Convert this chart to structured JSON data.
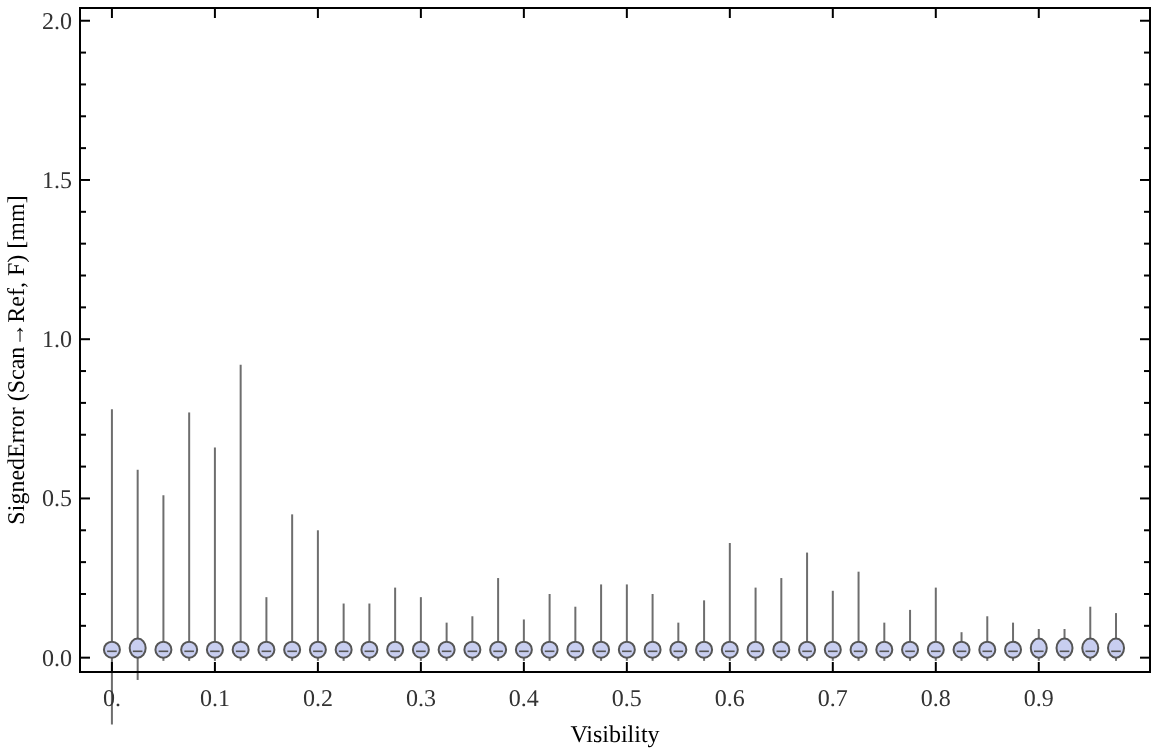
{
  "chart_data": {
    "type": "box",
    "xlabel": "Visibility",
    "ylabel": "SignedError (Scan→Ref, F) [mm]",
    "color": "#c8cef0",
    "x": [
      0,
      0.025,
      0.05,
      0.075,
      0.1,
      0.125,
      0.15,
      0.175,
      0.2,
      0.225,
      0.25,
      0.275,
      0.3,
      0.325,
      0.35,
      0.375,
      0.4,
      0.425,
      0.45,
      0.475,
      0.5,
      0.525,
      0.55,
      0.575,
      0.6,
      0.625,
      0.65,
      0.675,
      0.7,
      0.725,
      0.75,
      0.775,
      0.8,
      0.825,
      0.85,
      0.875,
      0.9,
      0.925,
      0.95,
      0.975
    ],
    "boxes": [
      {
        "low": -0.21,
        "q1": 0,
        "median": 0.02,
        "q3": 0.05,
        "high": 0.78
      },
      {
        "low": -0.07,
        "q1": 0,
        "median": 0.02,
        "q3": 0.06,
        "high": 0.59
      },
      {
        "low": -0.01,
        "q1": 0,
        "median": 0.02,
        "q3": 0.05,
        "high": 0.51
      },
      {
        "low": -0.01,
        "q1": 0,
        "median": 0.02,
        "q3": 0.05,
        "high": 0.77
      },
      {
        "low": -0.01,
        "q1": 0,
        "median": 0.02,
        "q3": 0.05,
        "high": 0.66
      },
      {
        "low": -0.01,
        "q1": 0,
        "median": 0.02,
        "q3": 0.05,
        "high": 0.92
      },
      {
        "low": -0.01,
        "q1": 0,
        "median": 0.02,
        "q3": 0.05,
        "high": 0.19
      },
      {
        "low": -0.01,
        "q1": 0,
        "median": 0.02,
        "q3": 0.05,
        "high": 0.45
      },
      {
        "low": -0.01,
        "q1": 0,
        "median": 0.02,
        "q3": 0.05,
        "high": 0.4
      },
      {
        "low": -0.01,
        "q1": 0,
        "median": 0.02,
        "q3": 0.05,
        "high": 0.17
      },
      {
        "low": -0.01,
        "q1": 0,
        "median": 0.02,
        "q3": 0.05,
        "high": 0.17
      },
      {
        "low": -0.01,
        "q1": 0,
        "median": 0.02,
        "q3": 0.05,
        "high": 0.22
      },
      {
        "low": -0.01,
        "q1": 0,
        "median": 0.02,
        "q3": 0.05,
        "high": 0.19
      },
      {
        "low": -0.01,
        "q1": 0,
        "median": 0.02,
        "q3": 0.05,
        "high": 0.11
      },
      {
        "low": -0.01,
        "q1": 0,
        "median": 0.02,
        "q3": 0.05,
        "high": 0.13
      },
      {
        "low": -0.01,
        "q1": 0,
        "median": 0.02,
        "q3": 0.05,
        "high": 0.25
      },
      {
        "low": -0.01,
        "q1": 0,
        "median": 0.02,
        "q3": 0.05,
        "high": 0.12
      },
      {
        "low": -0.01,
        "q1": 0,
        "median": 0.02,
        "q3": 0.05,
        "high": 0.2
      },
      {
        "low": -0.01,
        "q1": 0,
        "median": 0.02,
        "q3": 0.05,
        "high": 0.16
      },
      {
        "low": -0.01,
        "q1": 0,
        "median": 0.02,
        "q3": 0.05,
        "high": 0.23
      },
      {
        "low": -0.01,
        "q1": 0,
        "median": 0.02,
        "q3": 0.05,
        "high": 0.23
      },
      {
        "low": -0.01,
        "q1": 0,
        "median": 0.02,
        "q3": 0.05,
        "high": 0.2
      },
      {
        "low": -0.01,
        "q1": 0,
        "median": 0.02,
        "q3": 0.05,
        "high": 0.11
      },
      {
        "low": -0.01,
        "q1": 0,
        "median": 0.02,
        "q3": 0.05,
        "high": 0.18
      },
      {
        "low": -0.01,
        "q1": 0,
        "median": 0.02,
        "q3": 0.05,
        "high": 0.36
      },
      {
        "low": -0.01,
        "q1": 0,
        "median": 0.02,
        "q3": 0.05,
        "high": 0.22
      },
      {
        "low": -0.01,
        "q1": 0,
        "median": 0.02,
        "q3": 0.05,
        "high": 0.25
      },
      {
        "low": -0.01,
        "q1": 0,
        "median": 0.02,
        "q3": 0.05,
        "high": 0.33
      },
      {
        "low": -0.01,
        "q1": 0,
        "median": 0.02,
        "q3": 0.05,
        "high": 0.21
      },
      {
        "low": -0.01,
        "q1": 0,
        "median": 0.02,
        "q3": 0.05,
        "high": 0.27
      },
      {
        "low": -0.01,
        "q1": 0,
        "median": 0.02,
        "q3": 0.05,
        "high": 0.11
      },
      {
        "low": -0.01,
        "q1": 0,
        "median": 0.02,
        "q3": 0.05,
        "high": 0.15
      },
      {
        "low": -0.01,
        "q1": 0,
        "median": 0.02,
        "q3": 0.05,
        "high": 0.22
      },
      {
        "low": -0.01,
        "q1": 0,
        "median": 0.02,
        "q3": 0.05,
        "high": 0.08
      },
      {
        "low": -0.01,
        "q1": 0,
        "median": 0.02,
        "q3": 0.05,
        "high": 0.13
      },
      {
        "low": -0.01,
        "q1": 0,
        "median": 0.02,
        "q3": 0.05,
        "high": 0.11
      },
      {
        "low": -0.01,
        "q1": 0,
        "median": 0.02,
        "q3": 0.06,
        "high": 0.09
      },
      {
        "low": -0.01,
        "q1": 0,
        "median": 0.02,
        "q3": 0.06,
        "high": 0.09
      },
      {
        "low": -0.01,
        "q1": 0,
        "median": 0.02,
        "q3": 0.06,
        "high": 0.16
      },
      {
        "low": -0.01,
        "q1": 0,
        "median": 0.02,
        "q3": 0.06,
        "high": 0.14
      }
    ],
    "xlim": [
      -0.031,
      1.008
    ],
    "ylim": [
      -0.045,
      2.04
    ],
    "xticks": [
      {
        "value": 0,
        "label": "0."
      },
      0.1,
      0.2,
      0.3,
      0.4,
      0.5,
      0.6,
      0.7,
      0.8,
      0.9
    ],
    "yticks": [
      {
        "value": 0,
        "label": "0.0"
      },
      {
        "value": 0.1,
        "label": null
      },
      {
        "value": 0.2,
        "label": null
      },
      {
        "value": 0.3,
        "label": null
      },
      {
        "value": 0.4,
        "label": null
      },
      {
        "value": 0.5,
        "label": "0.5"
      },
      {
        "value": 0.6,
        "label": null
      },
      {
        "value": 0.7,
        "label": null
      },
      {
        "value": 0.8,
        "label": null
      },
      {
        "value": 0.9,
        "label": null
      },
      {
        "value": 1,
        "label": "1.0"
      },
      {
        "value": 1.1,
        "label": null
      },
      {
        "value": 1.2,
        "label": null
      },
      {
        "value": 1.3,
        "label": null
      },
      {
        "value": 1.4,
        "label": null
      },
      {
        "value": 1.5,
        "label": "1.5"
      },
      {
        "value": 1.6,
        "label": null
      },
      {
        "value": 1.7,
        "label": null
      },
      {
        "value": 1.8,
        "label": null
      },
      {
        "value": 1.9,
        "label": null
      },
      {
        "value": 2,
        "label": "2.0"
      }
    ]
  }
}
